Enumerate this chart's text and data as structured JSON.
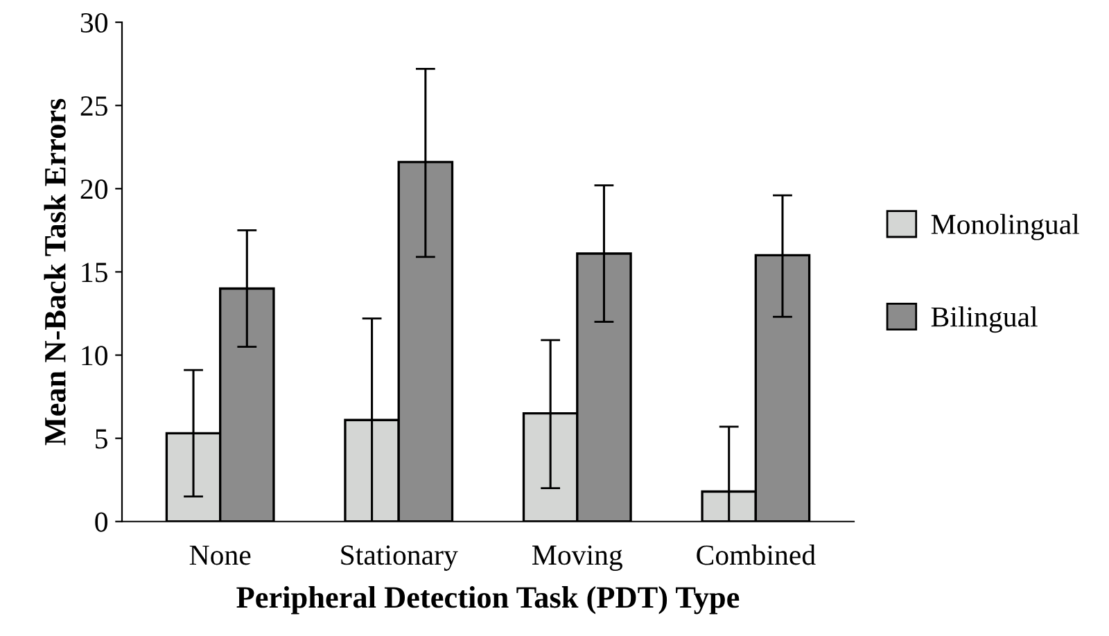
{
  "chart_data": {
    "type": "bar",
    "xlabel": "Peripheral Detection Task (PDT) Type",
    "ylabel": "Mean N-Back Task Errors",
    "categories": [
      "None",
      "Stationary",
      "Moving",
      "Combined"
    ],
    "series": [
      {
        "name": "Monolingual",
        "color": "#d4d6d4",
        "values": [
          5.3,
          6.1,
          6.5,
          1.8
        ],
        "errors": [
          [
            1.5,
            9.1
          ],
          [
            0,
            12.2
          ],
          [
            2.0,
            10.9
          ],
          [
            0,
            5.7
          ]
        ]
      },
      {
        "name": "Bilingual",
        "color": "#8c8c8c",
        "values": [
          14.0,
          21.6,
          16.1,
          16.0
        ],
        "errors": [
          [
            10.5,
            17.5
          ],
          [
            15.9,
            27.2
          ],
          [
            12.0,
            20.2
          ],
          [
            12.3,
            19.6
          ]
        ]
      }
    ],
    "ylim": [
      0,
      30
    ],
    "yticks": [
      0,
      5,
      10,
      15,
      20,
      25,
      30
    ],
    "grid": false,
    "legend": "right"
  }
}
